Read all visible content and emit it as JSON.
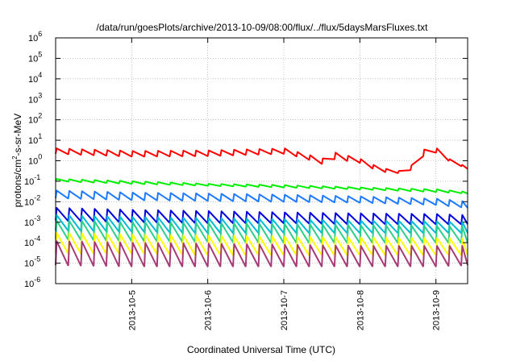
{
  "chart_data": {
    "type": "line",
    "title": "/data/run/goesPlots/archive/2013-10-09/08:00/flux/../flux/5daysMarsFluxes.txt",
    "xlabel": "Coordinated Universal Time (UTC)",
    "ylabel_parts": {
      "base": "protons/cm",
      "sup": "2",
      "rest": "-s-sr-MeV"
    },
    "y_scale": "log",
    "ylim": [
      1e-06,
      1000000.0
    ],
    "y_ticks": [
      {
        "value": 1e-06,
        "base": "10",
        "exp": "-6"
      },
      {
        "value": 1e-05,
        "base": "10",
        "exp": "-5"
      },
      {
        "value": 0.0001,
        "base": "10",
        "exp": "-4"
      },
      {
        "value": 0.001,
        "base": "10",
        "exp": "-3"
      },
      {
        "value": 0.01,
        "base": "10",
        "exp": "-2"
      },
      {
        "value": 0.1,
        "base": "10",
        "exp": "-1"
      },
      {
        "value": 1,
        "base": "10",
        "exp": "0"
      },
      {
        "value": 10,
        "base": "10",
        "exp": "1"
      },
      {
        "value": 100,
        "base": "10",
        "exp": "2"
      },
      {
        "value": 1000,
        "base": "10",
        "exp": "3"
      },
      {
        "value": 10000,
        "base": "10",
        "exp": "4"
      },
      {
        "value": 100000,
        "base": "10",
        "exp": "5"
      },
      {
        "value": 1000000,
        "base": "10",
        "exp": "6"
      }
    ],
    "xlim": [
      "2013-10-04T00:00",
      "2013-10-09T10:00"
    ],
    "x_ticks": [
      {
        "value": "2013-10-05",
        "label": "2013-10-5"
      },
      {
        "value": "2013-10-06",
        "label": "2013-10-6"
      },
      {
        "value": "2013-10-07",
        "label": "2013-10-7"
      },
      {
        "value": "2013-10-08",
        "label": "2013-10-8"
      },
      {
        "value": "2013-10-09",
        "label": "2013-10-9"
      }
    ],
    "grid": true,
    "series": [
      {
        "color": "#ff0000",
        "shape": "sawtooth",
        "cycle_hours": 4,
        "profile": [
          [
            "2013-10-04T00:00",
            4,
            2.2
          ],
          [
            "2013-10-05T00:00",
            3,
            1.6
          ],
          [
            "2013-10-06T00:00",
            3.2,
            1.7
          ],
          [
            "2013-10-07T00:00",
            4,
            2.2
          ],
          [
            "2013-10-07T06:00",
            2.2,
            1.4
          ],
          [
            "2013-10-07T12:00",
            1.3,
            0.7
          ],
          [
            "2013-10-07T16:00",
            2.5,
            1.2
          ],
          [
            "2013-10-08T00:00",
            1.2,
            0.8
          ],
          [
            "2013-10-08T06:00",
            0.45,
            0.3
          ],
          [
            "2013-10-08T12:00",
            0.32,
            0.25
          ],
          [
            "2013-10-08T16:00",
            0.6,
            0.35
          ],
          [
            "2013-10-08T21:00",
            5.5,
            2.5
          ],
          [
            "2013-10-09T00:00",
            4,
            2.5
          ],
          [
            "2013-10-09T04:00",
            1.2,
            1.0
          ],
          [
            "2013-10-09T10:00",
            0.45,
            0.4
          ]
        ]
      },
      {
        "color": "#00ee00",
        "shape": "sawtooth",
        "cycle_hours": 4,
        "profile": [
          [
            "2013-10-04T00:00",
            0.13,
            0.1
          ],
          [
            "2013-10-05T00:00",
            0.1,
            0.075
          ],
          [
            "2013-10-06T00:00",
            0.075,
            0.06
          ],
          [
            "2013-10-07T00:00",
            0.065,
            0.05
          ],
          [
            "2013-10-08T00:00",
            0.05,
            0.04
          ],
          [
            "2013-10-09T00:00",
            0.04,
            0.03
          ],
          [
            "2013-10-09T10:00",
            0.03,
            0.025
          ]
        ]
      },
      {
        "color": "#1e7bff",
        "shape": "sawtooth",
        "cycle_hours": 4,
        "profile": [
          [
            "2013-10-04T00:00",
            0.035,
            0.015
          ],
          [
            "2013-10-05T00:00",
            0.028,
            0.012
          ],
          [
            "2013-10-06T00:00",
            0.025,
            0.011
          ],
          [
            "2013-10-07T00:00",
            0.022,
            0.01
          ],
          [
            "2013-10-08T00:00",
            0.018,
            0.009
          ],
          [
            "2013-10-09T00:00",
            0.014,
            0.007
          ],
          [
            "2013-10-09T10:00",
            0.01,
            0.005
          ]
        ]
      },
      {
        "color": "#0000dd",
        "shape": "sawtooth",
        "cycle_hours": 4,
        "profile": [
          [
            "2013-10-04T00:00",
            0.005,
            0.0012
          ],
          [
            "2013-10-05T00:00",
            0.004,
            0.001
          ],
          [
            "2013-10-06T00:00",
            0.0035,
            0.0009
          ],
          [
            "2013-10-07T00:00",
            0.003,
            0.0009
          ],
          [
            "2013-10-08T00:00",
            0.0027,
            0.0008
          ],
          [
            "2013-10-09T00:00",
            0.0025,
            0.0008
          ],
          [
            "2013-10-09T10:00",
            0.0022,
            0.0008
          ]
        ]
      },
      {
        "color": "#00bcd4",
        "shape": "sawtooth",
        "cycle_hours": 4,
        "profile": [
          [
            "2013-10-04T00:00",
            0.0022,
            0.0004
          ],
          [
            "2013-10-05T00:00",
            0.0018,
            0.00035
          ],
          [
            "2013-10-06T00:00",
            0.0016,
            0.0003
          ],
          [
            "2013-10-07T00:00",
            0.0014,
            0.0003
          ],
          [
            "2013-10-08T00:00",
            0.0012,
            0.0003
          ],
          [
            "2013-10-09T00:00",
            0.0011,
            0.0003
          ],
          [
            "2013-10-09T10:00",
            0.001,
            0.0003
          ]
        ]
      },
      {
        "color": "#2ecf8a",
        "shape": "sawtooth",
        "cycle_hours": 4,
        "profile": [
          [
            "2013-10-04T00:00",
            0.0012,
            0.00015
          ],
          [
            "2013-10-05T00:00",
            0.001,
            0.00012
          ],
          [
            "2013-10-06T00:00",
            0.0009,
            0.00011
          ],
          [
            "2013-10-07T00:00",
            0.0008,
            0.0001
          ],
          [
            "2013-10-08T00:00",
            0.0007,
            0.0001
          ],
          [
            "2013-10-09T00:00",
            0.00065,
            0.0001
          ],
          [
            "2013-10-09T10:00",
            0.0006,
            0.0001
          ]
        ]
      },
      {
        "color": "#ffff00",
        "shape": "sawtooth",
        "cycle_hours": 4,
        "profile": [
          [
            "2013-10-04T00:00",
            0.0003,
            3e-05
          ],
          [
            "2013-10-05T00:00",
            0.00025,
            3e-05
          ],
          [
            "2013-10-06T00:00",
            0.00022,
            2.5e-05
          ],
          [
            "2013-10-07T00:00",
            0.0002,
            2.5e-05
          ],
          [
            "2013-10-08T00:00",
            0.00018,
            2.5e-05
          ],
          [
            "2013-10-09T00:00",
            0.00017,
            2.5e-05
          ],
          [
            "2013-10-09T10:00",
            0.00016,
            2.5e-05
          ]
        ]
      },
      {
        "color": "#a53c78",
        "shape": "sawtooth",
        "cycle_hours": 4,
        "profile": [
          [
            "2013-10-04T00:00",
            0.00012,
            8e-06
          ],
          [
            "2013-10-05T00:00",
            0.0001,
            7e-06
          ],
          [
            "2013-10-06T00:00",
            9e-05,
            7e-06
          ],
          [
            "2013-10-07T00:00",
            8e-05,
            7e-06
          ],
          [
            "2013-10-08T00:00",
            7e-05,
            7e-06
          ],
          [
            "2013-10-09T00:00",
            7e-05,
            7e-06
          ],
          [
            "2013-10-09T10:00",
            7e-05,
            8e-06
          ]
        ]
      }
    ]
  }
}
